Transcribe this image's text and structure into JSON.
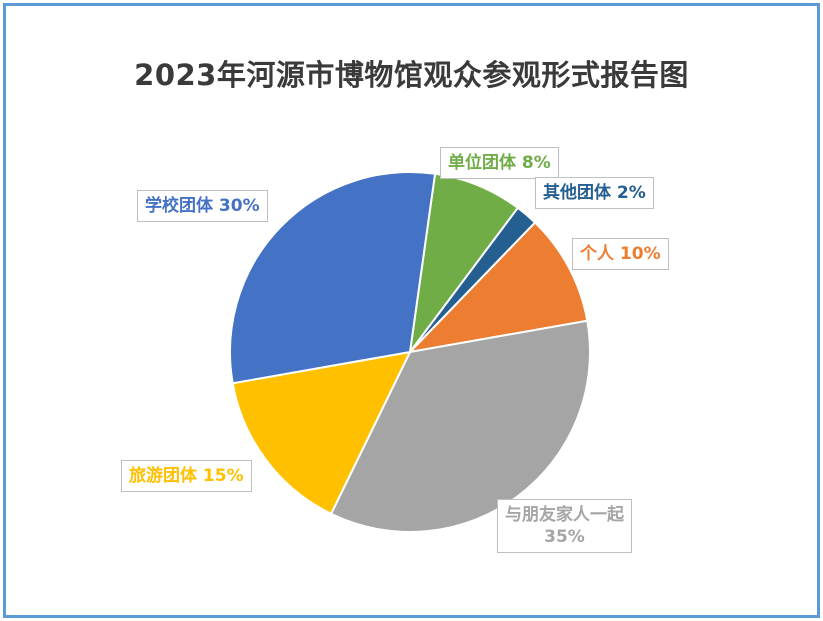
{
  "chart_data": {
    "type": "pie",
    "title": "2023年河源市博物馆观众参观形式报告图",
    "slices": [
      {
        "label": "单位团体",
        "value": 8,
        "display": "单位团体 8%",
        "color": "#70ad47"
      },
      {
        "label": "其他团体",
        "value": 2,
        "display": "其他团体 2%",
        "color": "#255e91"
      },
      {
        "label": "个人",
        "value": 10,
        "display": "个人 10%",
        "color": "#ed7d31"
      },
      {
        "label": "与朋友家人一起",
        "value": 35,
        "display": "与朋友家人一起\n35%",
        "color": "#a5a5a5"
      },
      {
        "label": "旅游团体",
        "value": 15,
        "display": "旅游团体 15%",
        "color": "#ffc000"
      },
      {
        "label": "学校团体",
        "value": 30,
        "display": "学校团体 30%",
        "color": "#4472c4"
      }
    ],
    "legend": "none"
  }
}
